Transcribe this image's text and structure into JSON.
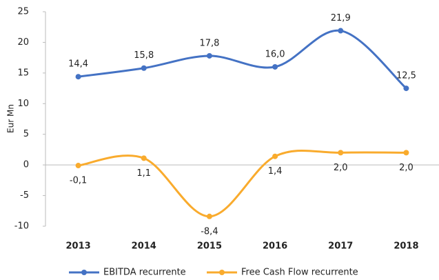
{
  "chart_data": {
    "type": "line",
    "y_label": "Eur Mn",
    "categories": [
      "2013",
      "2014",
      "2015",
      "2016",
      "2017",
      "2018"
    ],
    "series": [
      {
        "name": "EBITDA recurrente",
        "color": "#4472c4",
        "values": [
          14.4,
          15.8,
          17.8,
          16.0,
          21.9,
          12.5
        ],
        "value_labels": [
          "14,4",
          "15,8",
          "17,8",
          "16,0",
          "21,9",
          "12,5"
        ]
      },
      {
        "name": "Free Cash Flow recurrente",
        "color": "#f9ab2d",
        "values": [
          -0.1,
          1.1,
          -8.4,
          1.4,
          2.0,
          2.0
        ],
        "value_labels": [
          "-0,1",
          "1,1",
          "-8,4",
          "1,4",
          "2,0",
          "2,0"
        ]
      }
    ],
    "ylim": [
      -10,
      25
    ],
    "yticks": [
      -10,
      -5,
      0,
      5,
      10,
      15,
      20,
      25
    ],
    "grid": false,
    "legend": "bottom"
  }
}
